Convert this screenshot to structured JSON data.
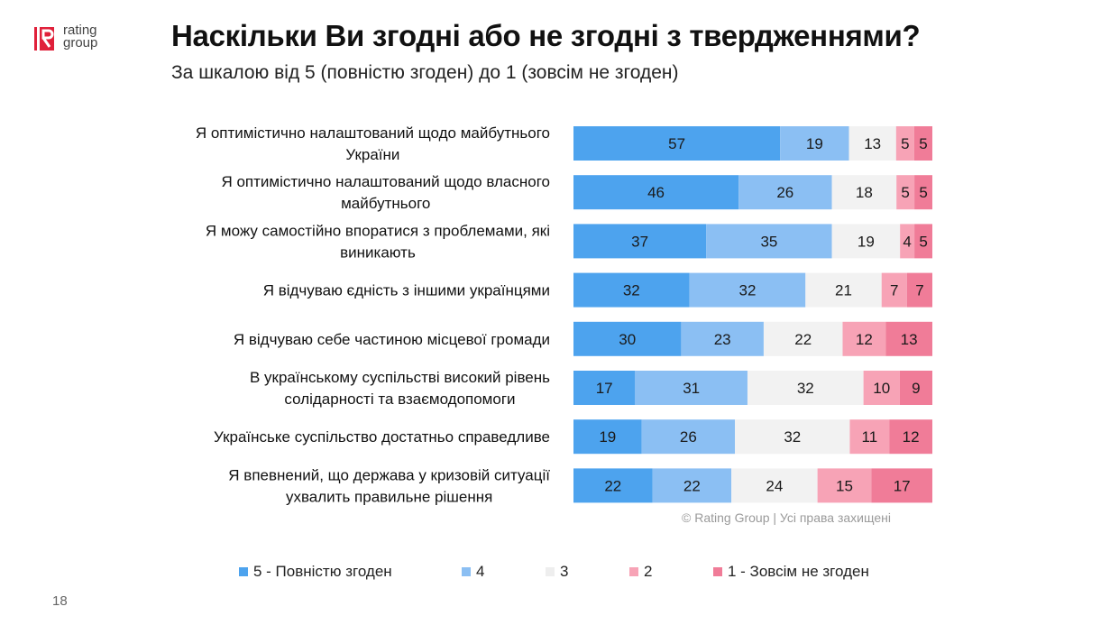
{
  "logo": {
    "line1": "rating",
    "line2": "group",
    "mark_color": "#e0203a"
  },
  "title": "Наскільки Ви згодні або не згодні з твердженнями?",
  "subtitle": "За шкалою від 5 (повністю згоден) до 1 (зовсім не згоден)",
  "copyright": "© Rating Group | Усі права захищені",
  "page_number": "18",
  "chart_data": {
    "type": "bar",
    "orientation": "horizontal",
    "stacked": true,
    "unit": "%",
    "categories": [
      "Я оптимістично налаштований щодо майбутнього України",
      "Я оптимістично налаштований щодо власного майбутнього",
      "Я можу самостійно впоратися з проблемами, які виникають",
      "Я відчуваю єдність з іншими українцями",
      "Я відчуваю себе частиною місцевої громади",
      "В українському суспільстві високий рівень солідарності та взаємодопомоги",
      "Українське суспільство достатньо справедливе",
      "Я впевнений, що держава у кризовій ситуації ухвалить правильне рішення"
    ],
    "category_lines": [
      [
        "Я оптимістично налаштований щодо майбутнього",
        "України"
      ],
      [
        "Я оптимістично налаштований щодо власного",
        "майбутнього"
      ],
      [
        "Я можу самостійно впоратися з проблемами, які",
        "виникають"
      ],
      [
        "Я відчуваю єдність з іншими українцями"
      ],
      [
        "Я відчуваю себе частиною місцевої громади"
      ],
      [
        "В українському суспільстві високий рівень",
        "солідарності та взаємодопомоги"
      ],
      [
        "Українське суспільство достатньо справедливе"
      ],
      [
        "Я впевнений, що держава у кризовій ситуації",
        "ухвалить правильне рішення"
      ]
    ],
    "series": [
      {
        "name": "5 - Повністю згоден",
        "color": "#4da3ee",
        "values": [
          57,
          46,
          37,
          32,
          30,
          17,
          19,
          22
        ]
      },
      {
        "name": "4",
        "color": "#8bbff3",
        "values": [
          19,
          26,
          35,
          32,
          23,
          31,
          26,
          22
        ]
      },
      {
        "name": "3",
        "color": "#f2f2f2",
        "values": [
          13,
          18,
          19,
          21,
          22,
          32,
          32,
          24
        ]
      },
      {
        "name": "2",
        "color": "#f7a3b6",
        "values": [
          5,
          5,
          4,
          7,
          12,
          10,
          11,
          15
        ]
      },
      {
        "name": "1 - Зовсім не згоден",
        "color": "#f07c98",
        "values": [
          5,
          5,
          5,
          7,
          13,
          9,
          12,
          17
        ]
      }
    ],
    "legend_position": "bottom",
    "grid": false
  }
}
